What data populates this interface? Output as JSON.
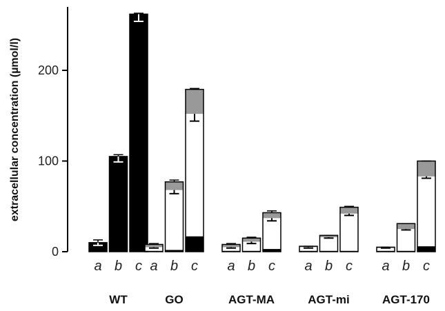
{
  "chart_data": {
    "type": "bar",
    "stacked": true,
    "ylabel": "extracellular concentration (µmol/l)",
    "ylim": [
      0,
      270
    ],
    "yticks": [
      0,
      100,
      200
    ],
    "groups": [
      "WT",
      "GO",
      "AGT-MA",
      "AGT-mi",
      "AGT-170"
    ],
    "subcategories": [
      "a",
      "b",
      "c"
    ],
    "segment_colors": {
      "bottom": "#000000",
      "middle": "#ffffff",
      "top": "#999999"
    },
    "bars": [
      {
        "group": "WT",
        "sub": "a",
        "bottom": 10,
        "middle": 0,
        "top": 0,
        "err_total": 3,
        "err_inner": 3
      },
      {
        "group": "WT",
        "sub": "b",
        "bottom": 105,
        "middle": 0,
        "top": 0,
        "err_total": 2,
        "err_inner": 6
      },
      {
        "group": "WT",
        "sub": "c",
        "bottom": 262,
        "middle": 0,
        "top": 0,
        "err_total": 1,
        "err_inner": 8
      },
      {
        "group": "GO",
        "sub": "a",
        "bottom": 1,
        "middle": 4,
        "top": 3,
        "err_total": 1,
        "err_inner": 1
      },
      {
        "group": "GO",
        "sub": "b",
        "bottom": 2,
        "middle": 66,
        "top": 9,
        "err_total": 2,
        "err_inner": 4
      },
      {
        "group": "GO",
        "sub": "c",
        "bottom": 17,
        "middle": 135,
        "top": 27,
        "err_total": 1,
        "err_inner": 8
      },
      {
        "group": "AGT-MA",
        "sub": "a",
        "bottom": 1,
        "middle": 4,
        "top": 3,
        "err_total": 1,
        "err_inner": 1
      },
      {
        "group": "AGT-MA",
        "sub": "b",
        "bottom": 1,
        "middle": 10,
        "top": 4,
        "err_total": 1,
        "err_inner": 2
      },
      {
        "group": "AGT-MA",
        "sub": "c",
        "bottom": 3,
        "middle": 34,
        "top": 6,
        "err_total": 2,
        "err_inner": 3
      },
      {
        "group": "AGT-mi",
        "sub": "a",
        "bottom": 1,
        "middle": 4,
        "top": 1,
        "err_total": 0,
        "err_inner": 1
      },
      {
        "group": "AGT-mi",
        "sub": "b",
        "bottom": 1,
        "middle": 15,
        "top": 2,
        "err_total": 0,
        "err_inner": 1
      },
      {
        "group": "AGT-mi",
        "sub": "c",
        "bottom": 1,
        "middle": 41,
        "top": 7,
        "err_total": 1,
        "err_inner": 2
      },
      {
        "group": "AGT-170",
        "sub": "a",
        "bottom": 1,
        "middle": 3,
        "top": 1,
        "err_total": 0,
        "err_inner": 0
      },
      {
        "group": "AGT-170",
        "sub": "b",
        "bottom": 1,
        "middle": 24,
        "top": 6,
        "err_total": 0,
        "err_inner": 1
      },
      {
        "group": "AGT-170",
        "sub": "c",
        "bottom": 6,
        "middle": 77,
        "top": 17,
        "err_total": 0,
        "err_inner": 2
      }
    ]
  }
}
